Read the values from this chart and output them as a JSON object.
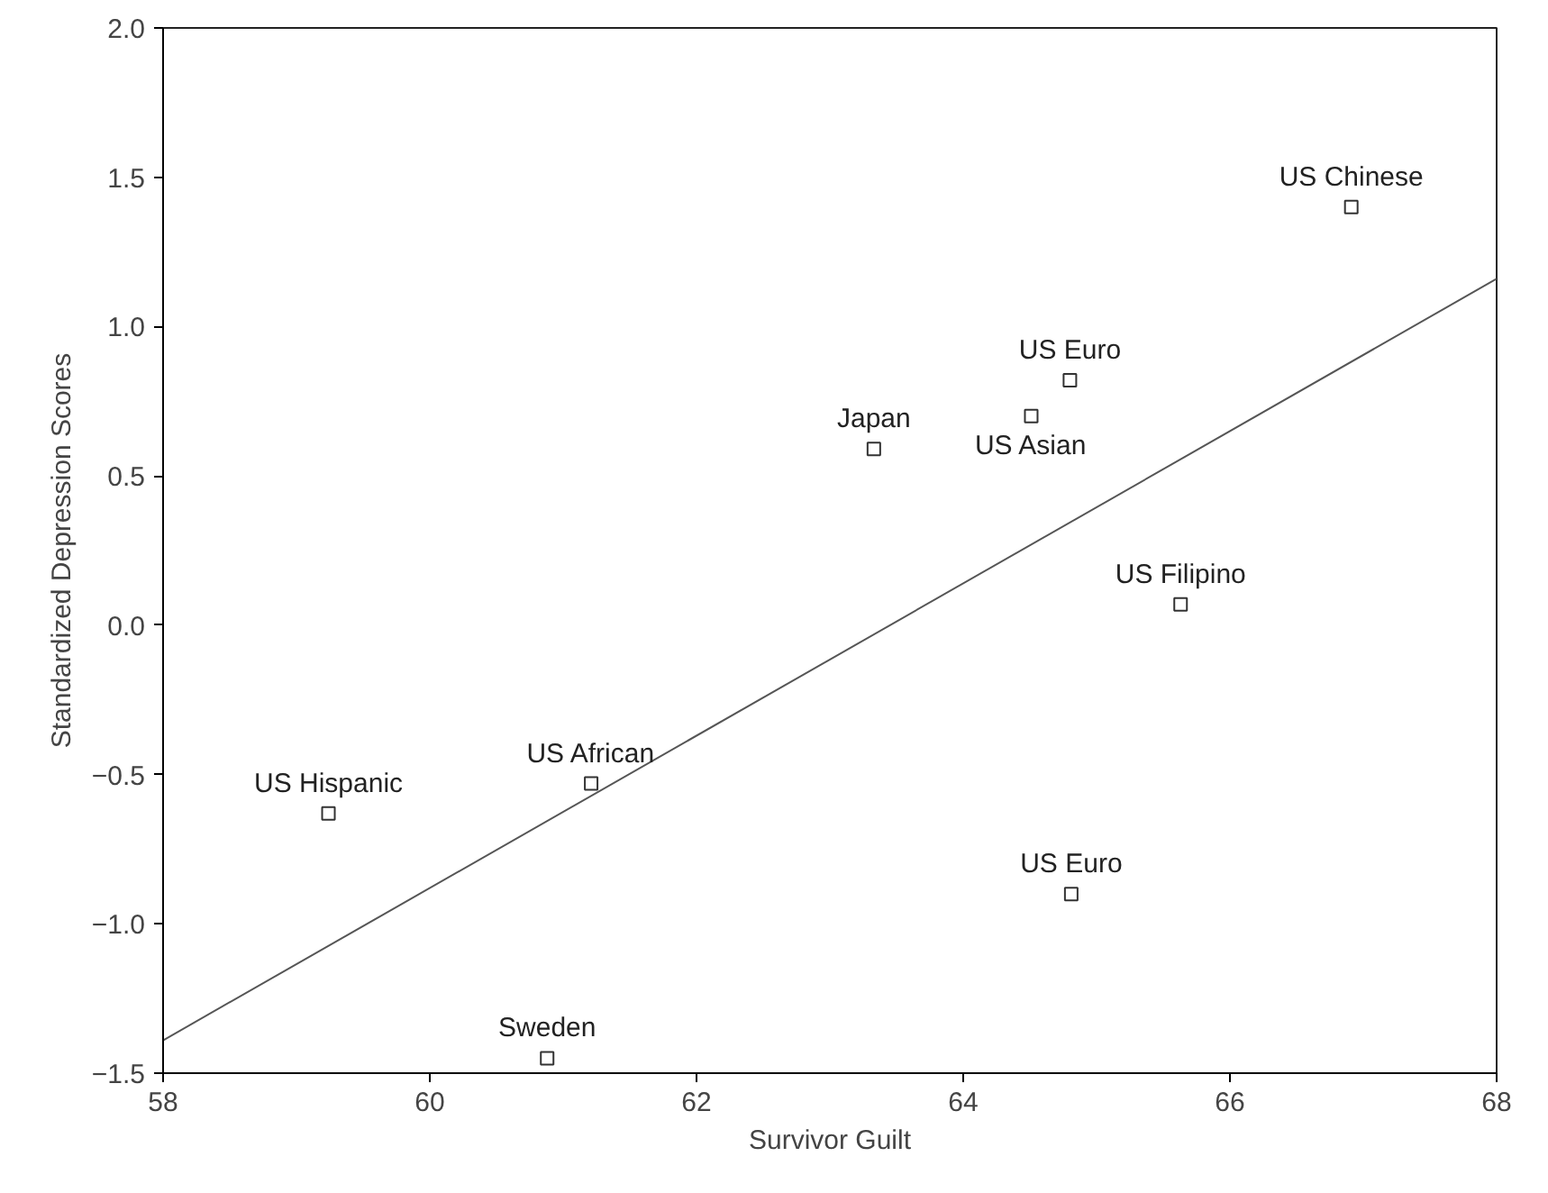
{
  "chart_data": {
    "type": "scatter",
    "xlabel": "Survivor Guilt",
    "ylabel": "Standardized Depression Scores",
    "xlim": [
      58,
      68
    ],
    "ylim": [
      -1.5,
      2.0
    ],
    "xticks": [
      58,
      60,
      62,
      64,
      66,
      68
    ],
    "yticks": [
      {
        "value": -1.5,
        "label": "−1.5"
      },
      {
        "value": -1.0,
        "label": "−1.0"
      },
      {
        "value": -0.5,
        "label": "−0.5"
      },
      {
        "value": 0.0,
        "label": "0.0"
      },
      0.5,
      {
        "value": 1.0,
        "label": "1.0"
      },
      1.5,
      {
        "value": 2.0,
        "label": "2.0"
      }
    ],
    "grid": false,
    "series": [
      {
        "marker": "square",
        "color": "#333333",
        "x": [
          66.91,
          64.8,
          64.51,
          63.33,
          65.63,
          59.24,
          61.21,
          64.81,
          60.88
        ],
        "values": [
          1.4,
          0.82,
          0.7,
          0.59,
          0.07,
          -0.63,
          -0.53,
          -0.9,
          -1.45
        ]
      },
      {
        "type": "line",
        "color": "#555555",
        "x": [
          58,
          68
        ],
        "values": [
          -1.39,
          1.16
        ]
      }
    ],
    "annotations": [
      {
        "text": "US Chinese",
        "x": 66.91,
        "y": 1.4
      },
      {
        "text": "US Euro",
        "x": 64.8,
        "y": 0.82
      },
      {
        "text": "US Asian",
        "x": 64.51,
        "y": 0.7
      },
      {
        "text": "Japan",
        "x": 63.33,
        "y": 0.59
      },
      {
        "text": "US Filipino",
        "x": 65.63,
        "y": 0.07
      },
      {
        "text": "US Hispanic",
        "x": 59.24,
        "y": -0.63
      },
      {
        "text": "US African",
        "x": 61.21,
        "y": -0.53
      },
      {
        "text": "US Euro",
        "x": 64.81,
        "y": -0.9
      },
      {
        "text": "Sweden",
        "x": 60.88,
        "y": -1.45
      }
    ]
  }
}
